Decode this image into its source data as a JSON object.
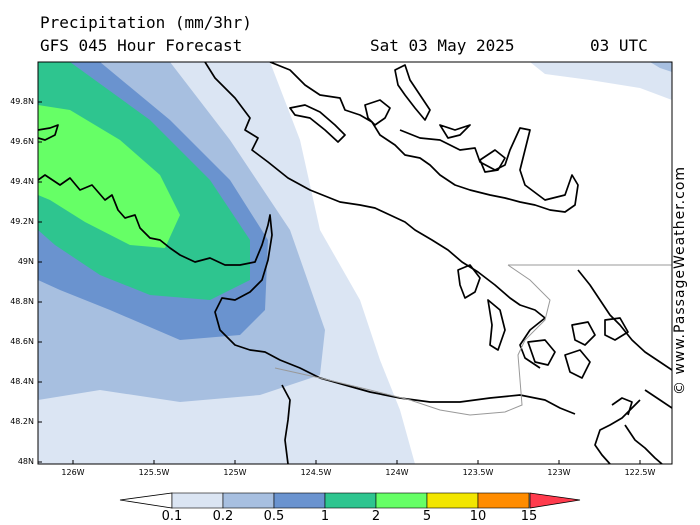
{
  "header": {
    "title": "Precipitation (mm/3hr)",
    "subtitle": "GFS 045 Hour Forecast",
    "date": "Sat 03 May 2025",
    "time": "03 UTC"
  },
  "credit": "© www.PassageWeather.com",
  "axes": {
    "lat_labels": [
      "49.8N",
      "49.6N",
      "49.4N",
      "49.2N",
      "49N",
      "48.8N",
      "48.6N",
      "48.4N",
      "48.2N",
      "48N"
    ],
    "lon_labels": [
      "126W",
      "125.5W",
      "125W",
      "124.5W",
      "124W",
      "123.5W",
      "123W",
      "122.5W"
    ]
  },
  "legend": {
    "labels": [
      "0.1",
      "0.2",
      "0.5",
      "1",
      "2",
      "5",
      "10",
      "15"
    ],
    "colors": [
      "#dbe5f3",
      "#a7bfe0",
      "#6a93cf",
      "#2ec58f",
      "#66ff66",
      "#f2e600",
      "#ff8c00",
      "#ff3b4d"
    ]
  },
  "colors": {
    "band_0_1": "#dbe5f3",
    "band_0_2": "#a7bfe0",
    "band_0_5": "#6a93cf",
    "band_1": "#2ec58f",
    "band_2": "#66ff66"
  }
}
